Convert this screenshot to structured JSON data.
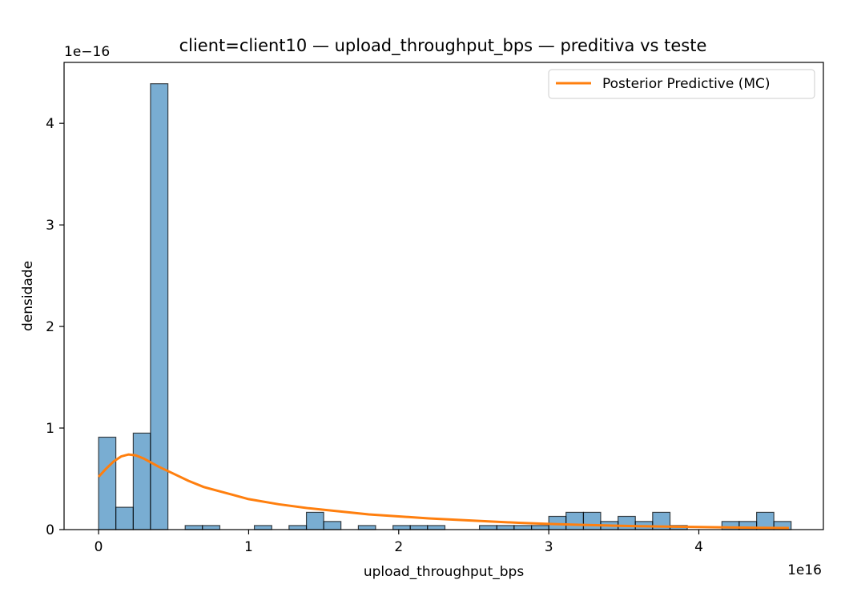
{
  "chart_data": {
    "type": "bar",
    "title": "client=client10 — upload_throughput_bps — preditiva vs teste",
    "xlabel": "upload_throughput_bps",
    "ylabel": "densidade",
    "x_offset_label": "1e16",
    "y_offset_label": "1e−16",
    "x_scale": 1e+16,
    "y_scale": 1e-16,
    "xlim": [
      -0.23,
      4.83
    ],
    "ylim": [
      0,
      4.6
    ],
    "x_ticks": [
      0,
      1,
      2,
      3,
      4
    ],
    "x_tick_labels": [
      "0",
      "1",
      "2",
      "3",
      "4"
    ],
    "y_ticks": [
      0,
      1,
      2,
      3,
      4
    ],
    "y_tick_labels": [
      "0",
      "1",
      "2",
      "3",
      "4"
    ],
    "legend_position": "top-right",
    "bin_width": 0.1154,
    "bin_start": 0.0,
    "series": [
      {
        "kind": "histogram",
        "color": "#1f77b4",
        "bins": [
          {
            "x0": 0.0,
            "x1": 0.115,
            "density": 0.91
          },
          {
            "x0": 0.115,
            "x1": 0.231,
            "density": 0.22
          },
          {
            "x0": 0.231,
            "x1": 0.346,
            "density": 0.95
          },
          {
            "x0": 0.346,
            "x1": 0.462,
            "density": 4.39
          },
          {
            "x0": 0.462,
            "x1": 0.577,
            "density": 0.0
          },
          {
            "x0": 0.577,
            "x1": 0.692,
            "density": 0.04
          },
          {
            "x0": 0.692,
            "x1": 0.808,
            "density": 0.04
          },
          {
            "x0": 0.808,
            "x1": 0.923,
            "density": 0.0
          },
          {
            "x0": 0.923,
            "x1": 1.038,
            "density": 0.0
          },
          {
            "x0": 1.038,
            "x1": 1.154,
            "density": 0.04
          },
          {
            "x0": 1.154,
            "x1": 1.269,
            "density": 0.0
          },
          {
            "x0": 1.269,
            "x1": 1.385,
            "density": 0.04
          },
          {
            "x0": 1.385,
            "x1": 1.5,
            "density": 0.17
          },
          {
            "x0": 1.5,
            "x1": 1.615,
            "density": 0.08
          },
          {
            "x0": 1.615,
            "x1": 1.731,
            "density": 0.0
          },
          {
            "x0": 1.731,
            "x1": 1.846,
            "density": 0.04
          },
          {
            "x0": 1.846,
            "x1": 1.962,
            "density": 0.0
          },
          {
            "x0": 1.962,
            "x1": 2.077,
            "density": 0.04
          },
          {
            "x0": 2.077,
            "x1": 2.192,
            "density": 0.04
          },
          {
            "x0": 2.192,
            "x1": 2.308,
            "density": 0.04
          },
          {
            "x0": 2.308,
            "x1": 2.423,
            "density": 0.0
          },
          {
            "x0": 2.423,
            "x1": 2.538,
            "density": 0.0
          },
          {
            "x0": 2.538,
            "x1": 2.654,
            "density": 0.04
          },
          {
            "x0": 2.654,
            "x1": 2.769,
            "density": 0.04
          },
          {
            "x0": 2.769,
            "x1": 2.885,
            "density": 0.04
          },
          {
            "x0": 2.885,
            "x1": 3.0,
            "density": 0.04
          },
          {
            "x0": 3.0,
            "x1": 3.115,
            "density": 0.13
          },
          {
            "x0": 3.115,
            "x1": 3.231,
            "density": 0.17
          },
          {
            "x0": 3.231,
            "x1": 3.346,
            "density": 0.17
          },
          {
            "x0": 3.346,
            "x1": 3.462,
            "density": 0.08
          },
          {
            "x0": 3.462,
            "x1": 3.577,
            "density": 0.13
          },
          {
            "x0": 3.577,
            "x1": 3.692,
            "density": 0.08
          },
          {
            "x0": 3.692,
            "x1": 3.808,
            "density": 0.17
          },
          {
            "x0": 3.808,
            "x1": 3.923,
            "density": 0.04
          },
          {
            "x0": 3.923,
            "x1": 4.038,
            "density": 0.0
          },
          {
            "x0": 4.038,
            "x1": 4.154,
            "density": 0.0
          },
          {
            "x0": 4.154,
            "x1": 4.269,
            "density": 0.08
          },
          {
            "x0": 4.269,
            "x1": 4.385,
            "density": 0.08
          },
          {
            "x0": 4.385,
            "x1": 4.5,
            "density": 0.17
          },
          {
            "x0": 4.5,
            "x1": 4.615,
            "density": 0.08
          }
        ]
      },
      {
        "kind": "line",
        "name": "Posterior Predictive (MC)",
        "color": "#ff7f0e",
        "x": [
          0.0,
          0.05,
          0.1,
          0.15,
          0.2,
          0.25,
          0.3,
          0.4,
          0.5,
          0.6,
          0.7,
          0.8,
          0.9,
          1.0,
          1.2,
          1.4,
          1.6,
          1.8,
          2.0,
          2.2,
          2.4,
          2.6,
          2.8,
          3.0,
          3.2,
          3.4,
          3.6,
          3.8,
          4.0,
          4.2,
          4.4,
          4.6
        ],
        "y": [
          0.52,
          0.6,
          0.67,
          0.72,
          0.74,
          0.73,
          0.7,
          0.62,
          0.55,
          0.48,
          0.42,
          0.38,
          0.34,
          0.3,
          0.25,
          0.21,
          0.18,
          0.15,
          0.13,
          0.11,
          0.095,
          0.08,
          0.067,
          0.056,
          0.047,
          0.04,
          0.034,
          0.029,
          0.025,
          0.021,
          0.018,
          0.016
        ]
      }
    ]
  }
}
